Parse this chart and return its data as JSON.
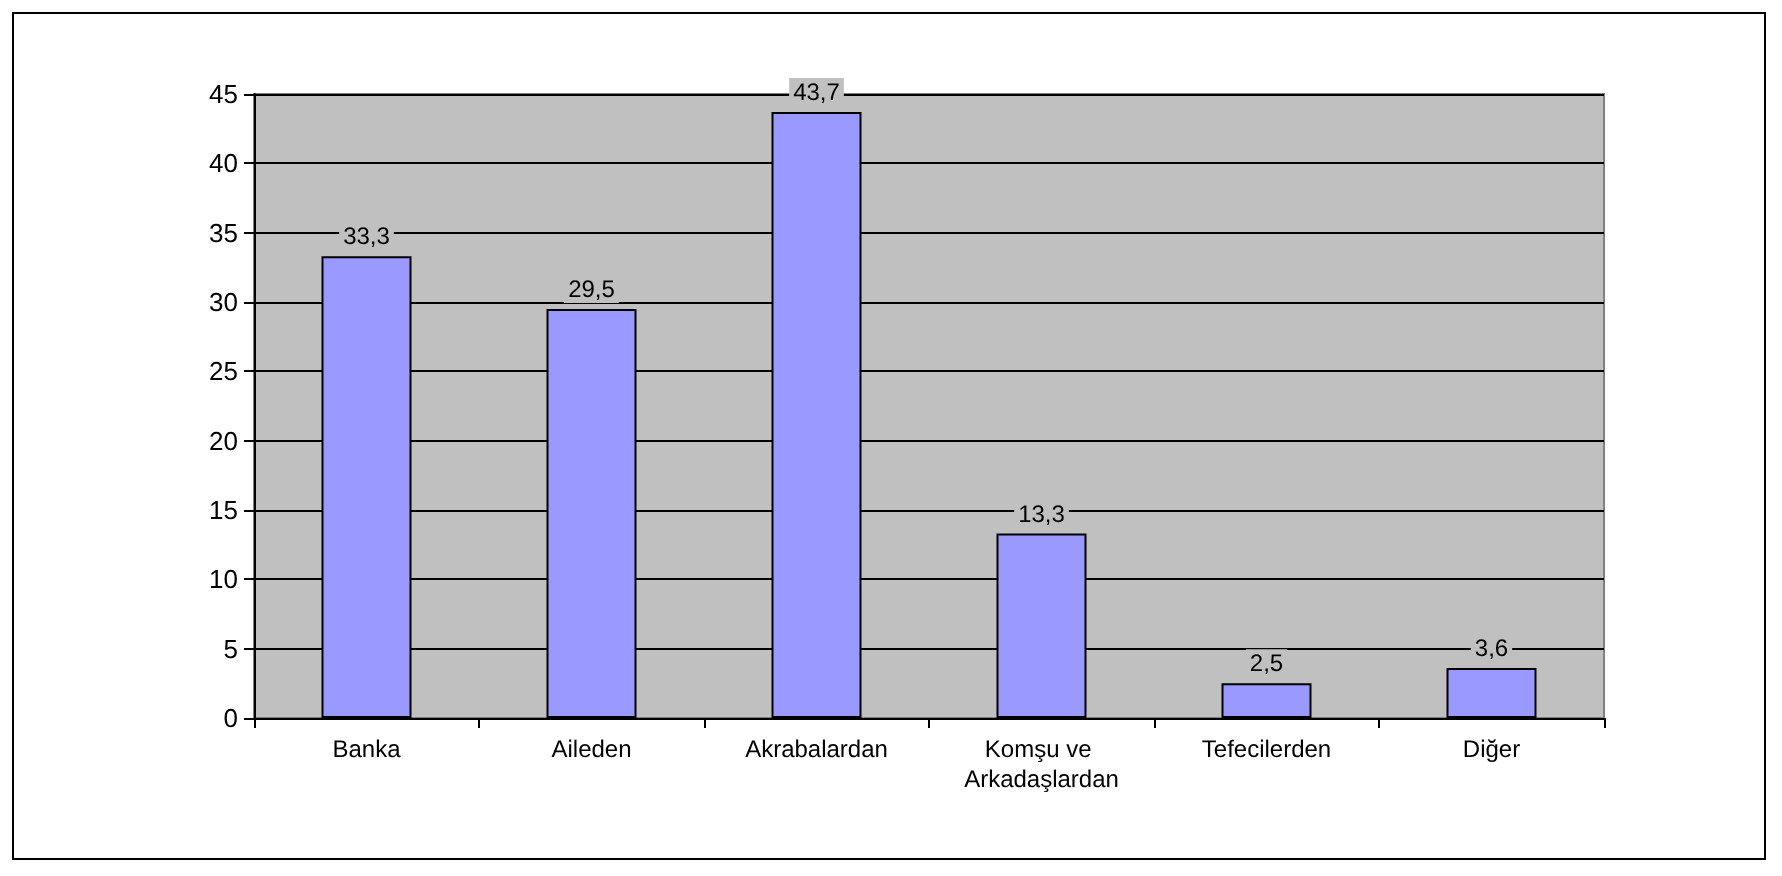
{
  "chart_data": {
    "type": "bar",
    "categories": [
      "Banka",
      "Aileden",
      "Akrabalardan",
      "Komşu ve Arkadaşlardan",
      "Tefecilerden",
      "Diğer"
    ],
    "values": [
      33.3,
      29.5,
      43.7,
      13.3,
      2.5,
      3.6
    ],
    "value_labels": [
      "33,3",
      "29,5",
      "43,7",
      "13,3",
      "2,5",
      "3,6"
    ],
    "color": "#9999ff",
    "ylim": [
      0,
      45
    ],
    "yticks": [
      0,
      5,
      10,
      15,
      20,
      25,
      30,
      35,
      40,
      45
    ],
    "grid": "y"
  }
}
